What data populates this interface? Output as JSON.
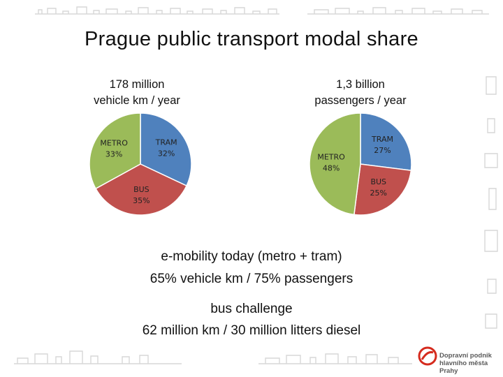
{
  "title": "Prague public transport modal share",
  "chart_data": [
    {
      "type": "pie",
      "title_line1": "178 million",
      "title_line2": "vehicle km / year",
      "slices": [
        {
          "name": "TRAM",
          "value": 32,
          "label": "32%",
          "color": "#4f81bd"
        },
        {
          "name": "BUS",
          "value": 35,
          "label": "35%",
          "color": "#c0504d"
        },
        {
          "name": "METRO",
          "value": 33,
          "label": "33%",
          "color": "#9bbb59"
        }
      ]
    },
    {
      "type": "pie",
      "title_line1": "1,3 billion",
      "title_line2": "passengers / year",
      "slices": [
        {
          "name": "TRAM",
          "value": 27,
          "label": "27%",
          "color": "#4f81bd"
        },
        {
          "name": "BUS",
          "value": 25,
          "label": "25%",
          "color": "#c0504d"
        },
        {
          "name": "METRO",
          "value": 48,
          "label": "48%",
          "color": "#9bbb59"
        }
      ]
    }
  ],
  "notes": {
    "emobility_title": "e-mobility today (metro + tram)",
    "emobility_detail": "65% vehicle km /  75% passengers",
    "bus_title": "bus challenge",
    "bus_detail": "62 million km / 30 million litters diesel"
  },
  "logo": {
    "line1": "Dopravní podnik",
    "line2": "hlavního města Prahy",
    "color": "#d52b1e"
  }
}
